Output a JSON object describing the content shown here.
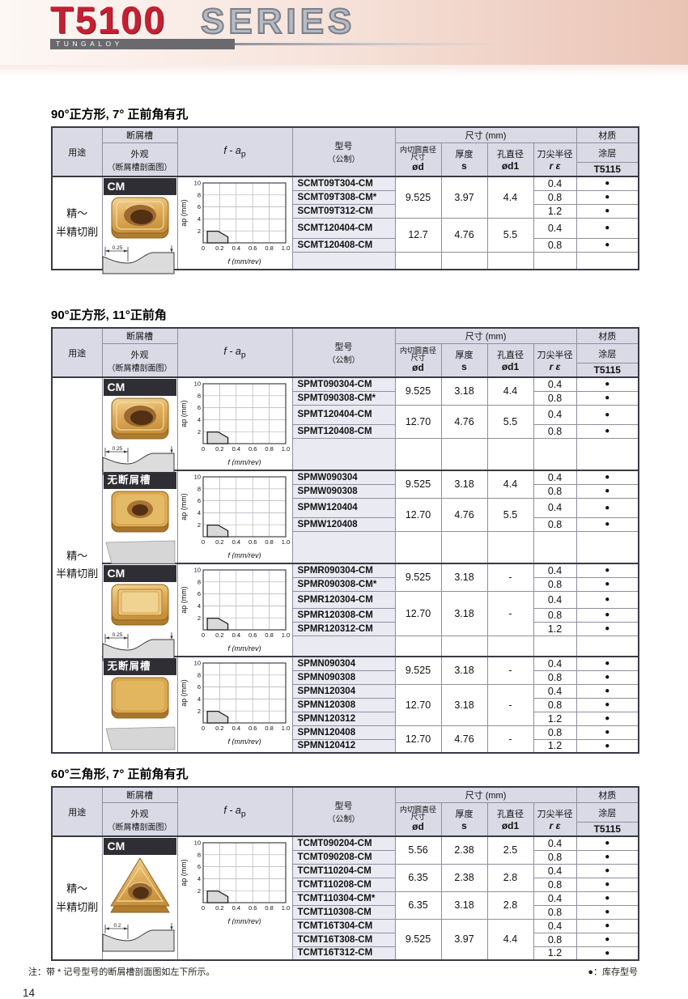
{
  "page": {
    "logo_title": "T5100",
    "logo_series": "SERIES",
    "logo_brand": "TUNGALOY",
    "footnote": "注：带 * 记号型号的断屑槽剖面图如左下所示。",
    "stock_note": "●：库存型号",
    "page_number": "14"
  },
  "header_labels": {
    "usage": "用途",
    "chipbreaker": "断屑槽",
    "appearance": "外观",
    "appearance_sub": "（断屑槽剖面图）",
    "fap_main": "f - a",
    "fap_sub": "p",
    "model": "型号",
    "model_sub": "（公制）",
    "dims": "尺寸 (mm)",
    "ic1": "内切圆直径",
    "ic2": "尺寸",
    "ic_sym": "ød",
    "thick": "厚度",
    "thick_sym": "s",
    "hole": "孔直径",
    "hole_sym": "ød1",
    "rad": "刀尖半径",
    "rad_sym": "r ε",
    "material": "材质",
    "coating": "涂层",
    "grade": "T5115"
  },
  "dot": "●",
  "fap_chart": {
    "ylabel": "ap (mm)",
    "xlabel": "f (mm/rev)",
    "ymax": 10,
    "xmax": 1.0,
    "yticks": [
      2,
      4,
      6,
      8,
      10
    ],
    "xticks": [
      "0",
      "0.2",
      "0.4",
      "0.6",
      "0.8",
      "1.0"
    ],
    "region": [
      [
        0.05,
        0
      ],
      [
        0.05,
        1.95
      ],
      [
        0.18,
        1.95
      ],
      [
        0.3,
        1.0
      ],
      [
        0.3,
        0
      ]
    ]
  },
  "tables": [
    {
      "title": "90°正方形, 7° 正前角有孔",
      "usage": "精～\n半精切削",
      "blocks": [
        {
          "label": "CM",
          "insert": "square-hole-cm",
          "section": "cm",
          "section_dim": "0.25",
          "filler": 22,
          "groups": [
            {
              "od": "9.525",
              "s": "3.97",
              "od1": "4.4",
              "rows": [
                [
                  "SCMT09T304-CM",
                  "0.4"
                ],
                [
                  "SCMT09T308-CM*",
                  "0.8"
                ],
                [
                  "SCMT09T312-CM",
                  "1.2"
                ]
              ]
            },
            {
              "od": "12.7",
              "s": "4.76",
              "od1": "5.5",
              "rows": [
                [
                  "SCMT120404-CM",
                  "0.4"
                ],
                [
                  "SCMT120408-CM",
                  "0.8"
                ]
              ]
            }
          ]
        }
      ]
    },
    {
      "title": "90°正方形, 11°正前角",
      "usage": "精～\n半精切削",
      "blocks": [
        {
          "label": "CM",
          "insert": "square-hole-cm",
          "section": "cm",
          "section_dim": "0.25",
          "filler": 40,
          "groups": [
            {
              "od": "9.525",
              "s": "3.18",
              "od1": "4.4",
              "rows": [
                [
                  "SPMT090304-CM",
                  "0.4"
                ],
                [
                  "SPMT090308-CM*",
                  "0.8"
                ]
              ]
            },
            {
              "od": "12.70",
              "s": "4.76",
              "od1": "5.5",
              "rows": [
                [
                  "SPMT120404-CM",
                  "0.4"
                ],
                [
                  "SPMT120408-CM",
                  "0.8"
                ]
              ]
            }
          ]
        },
        {
          "label": "无断屑槽",
          "insert": "square-hole-plain",
          "section": "plain",
          "section_dim": "",
          "filler": 40,
          "groups": [
            {
              "od": "9.525",
              "s": "3.18",
              "od1": "4.4",
              "rows": [
                [
                  "SPMW090304",
                  "0.4"
                ],
                [
                  "SPMW090308",
                  "0.8"
                ]
              ]
            },
            {
              "od": "12.70",
              "s": "4.76",
              "od1": "5.5",
              "rows": [
                [
                  "SPMW120404",
                  "0.4"
                ],
                [
                  "SPMW120408",
                  "0.8"
                ]
              ]
            }
          ]
        },
        {
          "label": "CM",
          "insert": "square-cm",
          "section": "cm",
          "section_dim": "0.25",
          "filler": 26,
          "groups": [
            {
              "od": "9.525",
              "s": "3.18",
              "od1": "-",
              "rows": [
                [
                  "SPMR090304-CM",
                  "0.4"
                ],
                [
                  "SPMR090308-CM*",
                  "0.8"
                ]
              ]
            },
            {
              "od": "12.70",
              "s": "3.18",
              "od1": "-",
              "rows": [
                [
                  "SPMR120304-CM",
                  "0.4"
                ],
                [
                  "SPMR120308-CM",
                  "0.8"
                ],
                [
                  "SPMR120312-CM",
                  "1.2"
                ]
              ]
            }
          ]
        },
        {
          "label": "无断屑槽",
          "insert": "square-plain",
          "section": "plain",
          "section_dim": "",
          "filler": 0,
          "groups": [
            {
              "od": "9.525",
              "s": "3.18",
              "od1": "-",
              "rows": [
                [
                  "SPMN090304",
                  "0.4"
                ],
                [
                  "SPMN090308",
                  "0.8"
                ]
              ]
            },
            {
              "od": "12.70",
              "s": "3.18",
              "od1": "-",
              "rows": [
                [
                  "SPMN120304",
                  "0.4"
                ],
                [
                  "SPMN120308",
                  "0.8"
                ],
                [
                  "SPMN120312",
                  "1.2"
                ]
              ]
            },
            {
              "od": "12.70",
              "s": "4.76",
              "od1": "-",
              "rows": [
                [
                  "SPMN120408",
                  "0.8"
                ],
                [
                  "SPMN120412",
                  "1.2"
                ]
              ]
            }
          ]
        }
      ]
    },
    {
      "title": "60°三角形, 7° 正前角有孔",
      "usage": "精～\n半精切削",
      "blocks": [
        {
          "label": "CM",
          "insert": "triangle-hole-cm",
          "section": "cm",
          "section_dim": "0.2",
          "filler": 0,
          "groups": [
            {
              "od": "5.56",
              "s": "2.38",
              "od1": "2.5",
              "rows": [
                [
                  "TCMT090204-CM",
                  "0.4"
                ],
                [
                  "TCMT090208-CM",
                  "0.8"
                ]
              ]
            },
            {
              "od": "6.35",
              "s": "2.38",
              "od1": "2.8",
              "rows": [
                [
                  "TCMT110204-CM",
                  "0.4"
                ],
                [
                  "TCMT110208-CM",
                  "0.8"
                ]
              ]
            },
            {
              "od": "6.35",
              "s": "3.18",
              "od1": "2.8",
              "rows": [
                [
                  "TCMT110304-CM*",
                  "0.4"
                ],
                [
                  "TCMT110308-CM",
                  "0.8"
                ]
              ]
            },
            {
              "od": "9.525",
              "s": "3.97",
              "od1": "4.4",
              "rows": [
                [
                  "TCMT16T304-CM",
                  "0.4"
                ],
                [
                  "TCMT16T308-CM",
                  "0.8"
                ],
                [
                  "TCMT16T312-CM",
                  "1.2"
                ]
              ]
            }
          ]
        }
      ]
    }
  ]
}
